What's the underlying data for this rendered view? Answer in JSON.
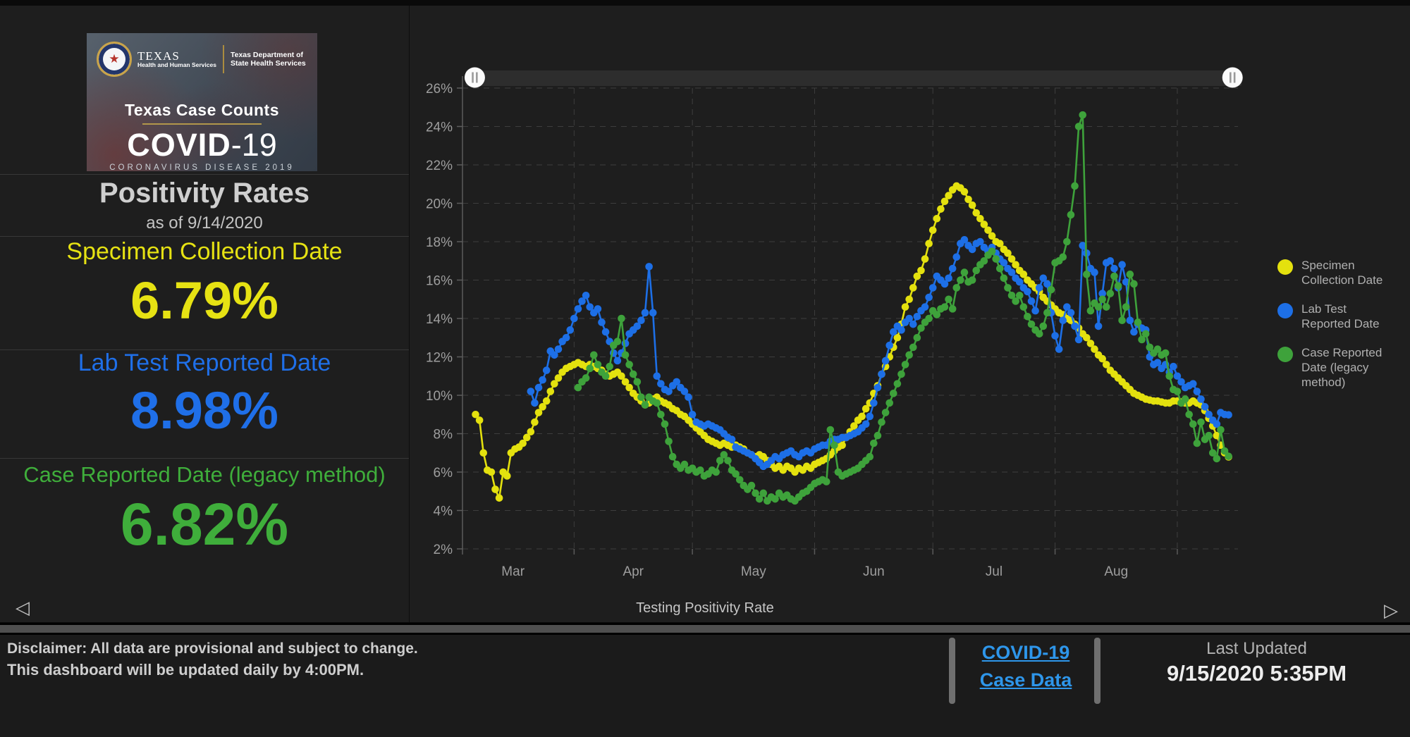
{
  "hero": {
    "seal_icon": "star-seal-icon",
    "agency_name": "TEXAS",
    "agency_sub": "Health and Human Services",
    "dept_name": "Texas Department of State Health Services",
    "case_counts_title": "Texas Case Counts",
    "covid_bold": "COVID",
    "covid_thin": "-19",
    "subtitle": "CORONAVIRUS DISEASE 2019"
  },
  "panel": {
    "title": "Positivity Rates",
    "as_of": "as of 9/14/2020",
    "metrics": [
      {
        "label": "Specimen Collection Date",
        "value": "6.79%",
        "color": "#e6e213"
      },
      {
        "label": "Lab Test Reported Date",
        "value": "8.98%",
        "color": "#1f6fe8"
      },
      {
        "label": "Case Reported Date (legacy method)",
        "value": "6.82%",
        "color": "#3fae3b"
      }
    ]
  },
  "carousel": {
    "title": "Testing Positivity Rate",
    "prev_arrow": "◁",
    "next_arrow": "▷"
  },
  "footer": {
    "disclaimer_line1": "Disclaimer: All data are provisional and subject to change.",
    "disclaimer_line2": "This dashboard will be updated daily by 4:00PM.",
    "link_line1": "COVID-19",
    "link_line2": "Case Data",
    "last_updated_label": "Last Updated",
    "last_updated_value": "9/15/2020 5:35PM"
  },
  "chart_data": {
    "type": "line",
    "title": "Testing Positivity Rate",
    "ylabel": "",
    "xlabel": "",
    "y_axis": {
      "min": 2,
      "max": 26,
      "step": 2,
      "tick_suffix": "%",
      "tick_labels": [
        "2%",
        "4%",
        "6%",
        "8%",
        "10%",
        "12%",
        "14%",
        "16%",
        "18%",
        "20%",
        "22%",
        "24%",
        "26%"
      ]
    },
    "x_axis": {
      "unit": "days since 2020-03-01",
      "month_labels": [
        "Mar",
        "Apr",
        "May",
        "Jun",
        "Jul",
        "Aug"
      ],
      "month_label_day_centers": [
        15.5,
        46,
        76.5,
        107,
        137.5,
        168.5
      ],
      "month_gridline_days": [
        31,
        61,
        92,
        122,
        153,
        184
      ],
      "domain_days": [
        3,
        201
      ]
    },
    "grid": "dashed",
    "legend_position": "right",
    "range_slider": {
      "left_handle_day": 5.8,
      "right_handle_day": 198,
      "handle_glyph": "||"
    },
    "series": [
      {
        "name": "Specimen Collection Date",
        "color": "#e4e10e",
        "start_day": 6,
        "cadence": "daily",
        "values": [
          9.0,
          8.7,
          7.0,
          6.1,
          6.0,
          5.1,
          4.65,
          6.0,
          5.8,
          7.0,
          7.2,
          7.3,
          7.5,
          7.8,
          8.1,
          8.6,
          9.1,
          9.4,
          9.7,
          10.2,
          10.6,
          10.9,
          11.2,
          11.4,
          11.5,
          11.6,
          11.7,
          11.6,
          11.5,
          11.6,
          11.5,
          11.4,
          11.3,
          11.1,
          11.0,
          11.1,
          11.2,
          11.0,
          10.7,
          10.4,
          10.1,
          9.9,
          9.7,
          9.5,
          9.6,
          9.8,
          9.9,
          9.7,
          9.6,
          9.5,
          9.3,
          9.2,
          9.0,
          8.9,
          8.7,
          8.5,
          8.3,
          8.1,
          7.9,
          7.7,
          7.6,
          7.5,
          7.4,
          7.5,
          7.4,
          7.3,
          7.4,
          7.3,
          7.2,
          7.0,
          6.9,
          6.8,
          6.9,
          6.8,
          6.6,
          6.4,
          6.2,
          6.3,
          6.1,
          6.3,
          6.2,
          6.0,
          6.2,
          6.1,
          6.3,
          6.2,
          6.4,
          6.5,
          6.6,
          6.7,
          6.9,
          7.1,
          7.3,
          7.4,
          7.8,
          8.1,
          8.4,
          8.7,
          8.9,
          9.3,
          9.6,
          10.1,
          10.5,
          11.1,
          11.5,
          12.0,
          12.5,
          13.0,
          13.7,
          14.6,
          15.0,
          15.6,
          16.2,
          16.5,
          17.1,
          17.9,
          18.6,
          19.2,
          19.7,
          20.1,
          20.4,
          20.7,
          20.9,
          20.8,
          20.6,
          20.2,
          19.9,
          19.5,
          19.2,
          18.9,
          18.6,
          18.3,
          18.0,
          17.9,
          17.6,
          17.4,
          17.1,
          16.8,
          16.5,
          16.3,
          16.0,
          15.8,
          15.6,
          15.4,
          15.1,
          14.9,
          14.7,
          14.5,
          14.3,
          14.2,
          14.0,
          13.9,
          13.7,
          13.5,
          13.2,
          13.0,
          12.7,
          12.4,
          12.1,
          11.9,
          11.6,
          11.3,
          11.1,
          10.9,
          10.7,
          10.5,
          10.3,
          10.1,
          10.0,
          9.9,
          9.8,
          9.75,
          9.7,
          9.7,
          9.65,
          9.6,
          9.6,
          9.7,
          9.7,
          9.65,
          9.6,
          9.6,
          9.7,
          9.6,
          9.5,
          9.2,
          8.8,
          8.4,
          7.9,
          7.4,
          7.0,
          6.79
        ]
      },
      {
        "name": "Lab Test Reported Date",
        "color": "#1d6fe6",
        "start_day": 20,
        "cadence": "daily",
        "values": [
          10.2,
          9.6,
          10.4,
          10.8,
          11.3,
          12.3,
          12.1,
          12.4,
          12.8,
          13.0,
          13.4,
          14.0,
          14.5,
          14.9,
          15.2,
          14.6,
          14.3,
          14.5,
          13.8,
          13.3,
          12.8,
          12.2,
          11.8,
          12.2,
          12.7,
          13.2,
          13.4,
          13.6,
          13.9,
          14.3,
          16.7,
          14.3,
          11.0,
          10.6,
          10.3,
          10.2,
          10.5,
          10.7,
          10.4,
          10.2,
          9.9,
          9.0,
          8.6,
          8.5,
          8.4,
          8.5,
          8.4,
          8.3,
          8.2,
          8.0,
          7.8,
          7.7,
          7.3,
          7.2,
          7.1,
          7.0,
          6.9,
          6.7,
          6.5,
          6.3,
          6.4,
          6.6,
          6.8,
          6.7,
          6.9,
          7.0,
          7.1,
          6.9,
          6.8,
          7.0,
          7.1,
          7.0,
          7.2,
          7.3,
          7.4,
          7.4,
          7.6,
          7.7,
          7.7,
          7.8,
          7.8,
          7.9,
          8.0,
          8.1,
          8.3,
          8.5,
          8.9,
          9.6,
          10.4,
          11.1,
          11.8,
          12.6,
          13.3,
          13.6,
          13.4,
          13.8,
          14.0,
          13.7,
          14.1,
          14.4,
          14.6,
          15.1,
          15.6,
          16.2,
          16.0,
          15.8,
          16.1,
          16.6,
          17.2,
          17.9,
          18.1,
          17.8,
          17.6,
          17.9,
          18.0,
          17.7,
          17.5,
          17.7,
          17.4,
          17.1,
          16.9,
          16.6,
          16.4,
          16.1,
          15.9,
          15.6,
          15.4,
          14.9,
          14.4,
          15.6,
          16.1,
          15.8,
          14.3,
          13.1,
          12.4,
          13.9,
          14.6,
          14.3,
          13.6,
          12.9,
          17.8,
          17.4,
          16.6,
          16.4,
          13.6,
          15.3,
          16.9,
          17.0,
          16.6,
          15.6,
          16.8,
          15.9,
          13.9,
          13.3,
          13.7,
          13.5,
          13.4,
          12.0,
          11.6,
          11.7,
          11.4,
          11.6,
          11.2,
          11.5,
          11.0,
          10.7,
          10.4,
          10.5,
          10.6,
          10.2,
          9.8,
          9.4,
          9.0,
          8.7,
          8.5,
          9.1,
          9.0,
          8.98
        ]
      },
      {
        "name": "Case Reported Date (legacy method)",
        "color": "#3ea23b",
        "start_day": 32,
        "cadence": "daily",
        "values": [
          10.4,
          10.7,
          10.9,
          11.4,
          12.1,
          11.6,
          11.2,
          11.0,
          11.5,
          12.6,
          12.8,
          14.0,
          12.1,
          11.6,
          11.1,
          10.7,
          9.9,
          9.5,
          9.9,
          9.7,
          9.6,
          9.0,
          8.5,
          7.6,
          6.8,
          6.4,
          6.2,
          6.4,
          6.1,
          6.2,
          6.0,
          6.1,
          5.8,
          5.9,
          6.1,
          6.0,
          6.6,
          6.9,
          6.6,
          6.1,
          5.9,
          5.6,
          5.3,
          5.1,
          5.3,
          4.9,
          4.6,
          4.9,
          4.5,
          4.7,
          4.6,
          4.9,
          4.7,
          4.8,
          4.6,
          4.5,
          4.7,
          4.9,
          5.0,
          5.2,
          5.4,
          5.5,
          5.6,
          5.5,
          8.2,
          7.4,
          6.0,
          5.8,
          5.9,
          6.0,
          6.1,
          6.2,
          6.4,
          6.6,
          6.8,
          7.5,
          7.9,
          8.6,
          9.1,
          9.6,
          10.1,
          10.6,
          11.1,
          11.6,
          12.1,
          12.5,
          13.0,
          13.5,
          13.8,
          14.0,
          14.4,
          14.2,
          14.5,
          14.6,
          15.0,
          14.5,
          15.6,
          16.0,
          16.4,
          15.9,
          16.0,
          16.5,
          16.8,
          17.0,
          17.3,
          17.5,
          17.1,
          16.6,
          16.1,
          15.6,
          15.2,
          14.9,
          15.2,
          14.6,
          14.1,
          13.7,
          13.4,
          13.2,
          13.6,
          14.3,
          15.5,
          16.9,
          17.0,
          17.2,
          18.0,
          19.4,
          20.9,
          24.0,
          24.6,
          16.3,
          14.4,
          14.8,
          14.6,
          15.0,
          14.6,
          15.3,
          16.2,
          15.7,
          13.9,
          14.6,
          16.3,
          15.8,
          13.8,
          12.9,
          13.2,
          12.5,
          12.2,
          12.4,
          12.1,
          12.2,
          11.0,
          10.3,
          10.2,
          9.6,
          9.8,
          9.0,
          8.5,
          7.5,
          8.6,
          7.7,
          7.9,
          7.0,
          6.7,
          8.2,
          7.1,
          6.82
        ]
      }
    ]
  }
}
